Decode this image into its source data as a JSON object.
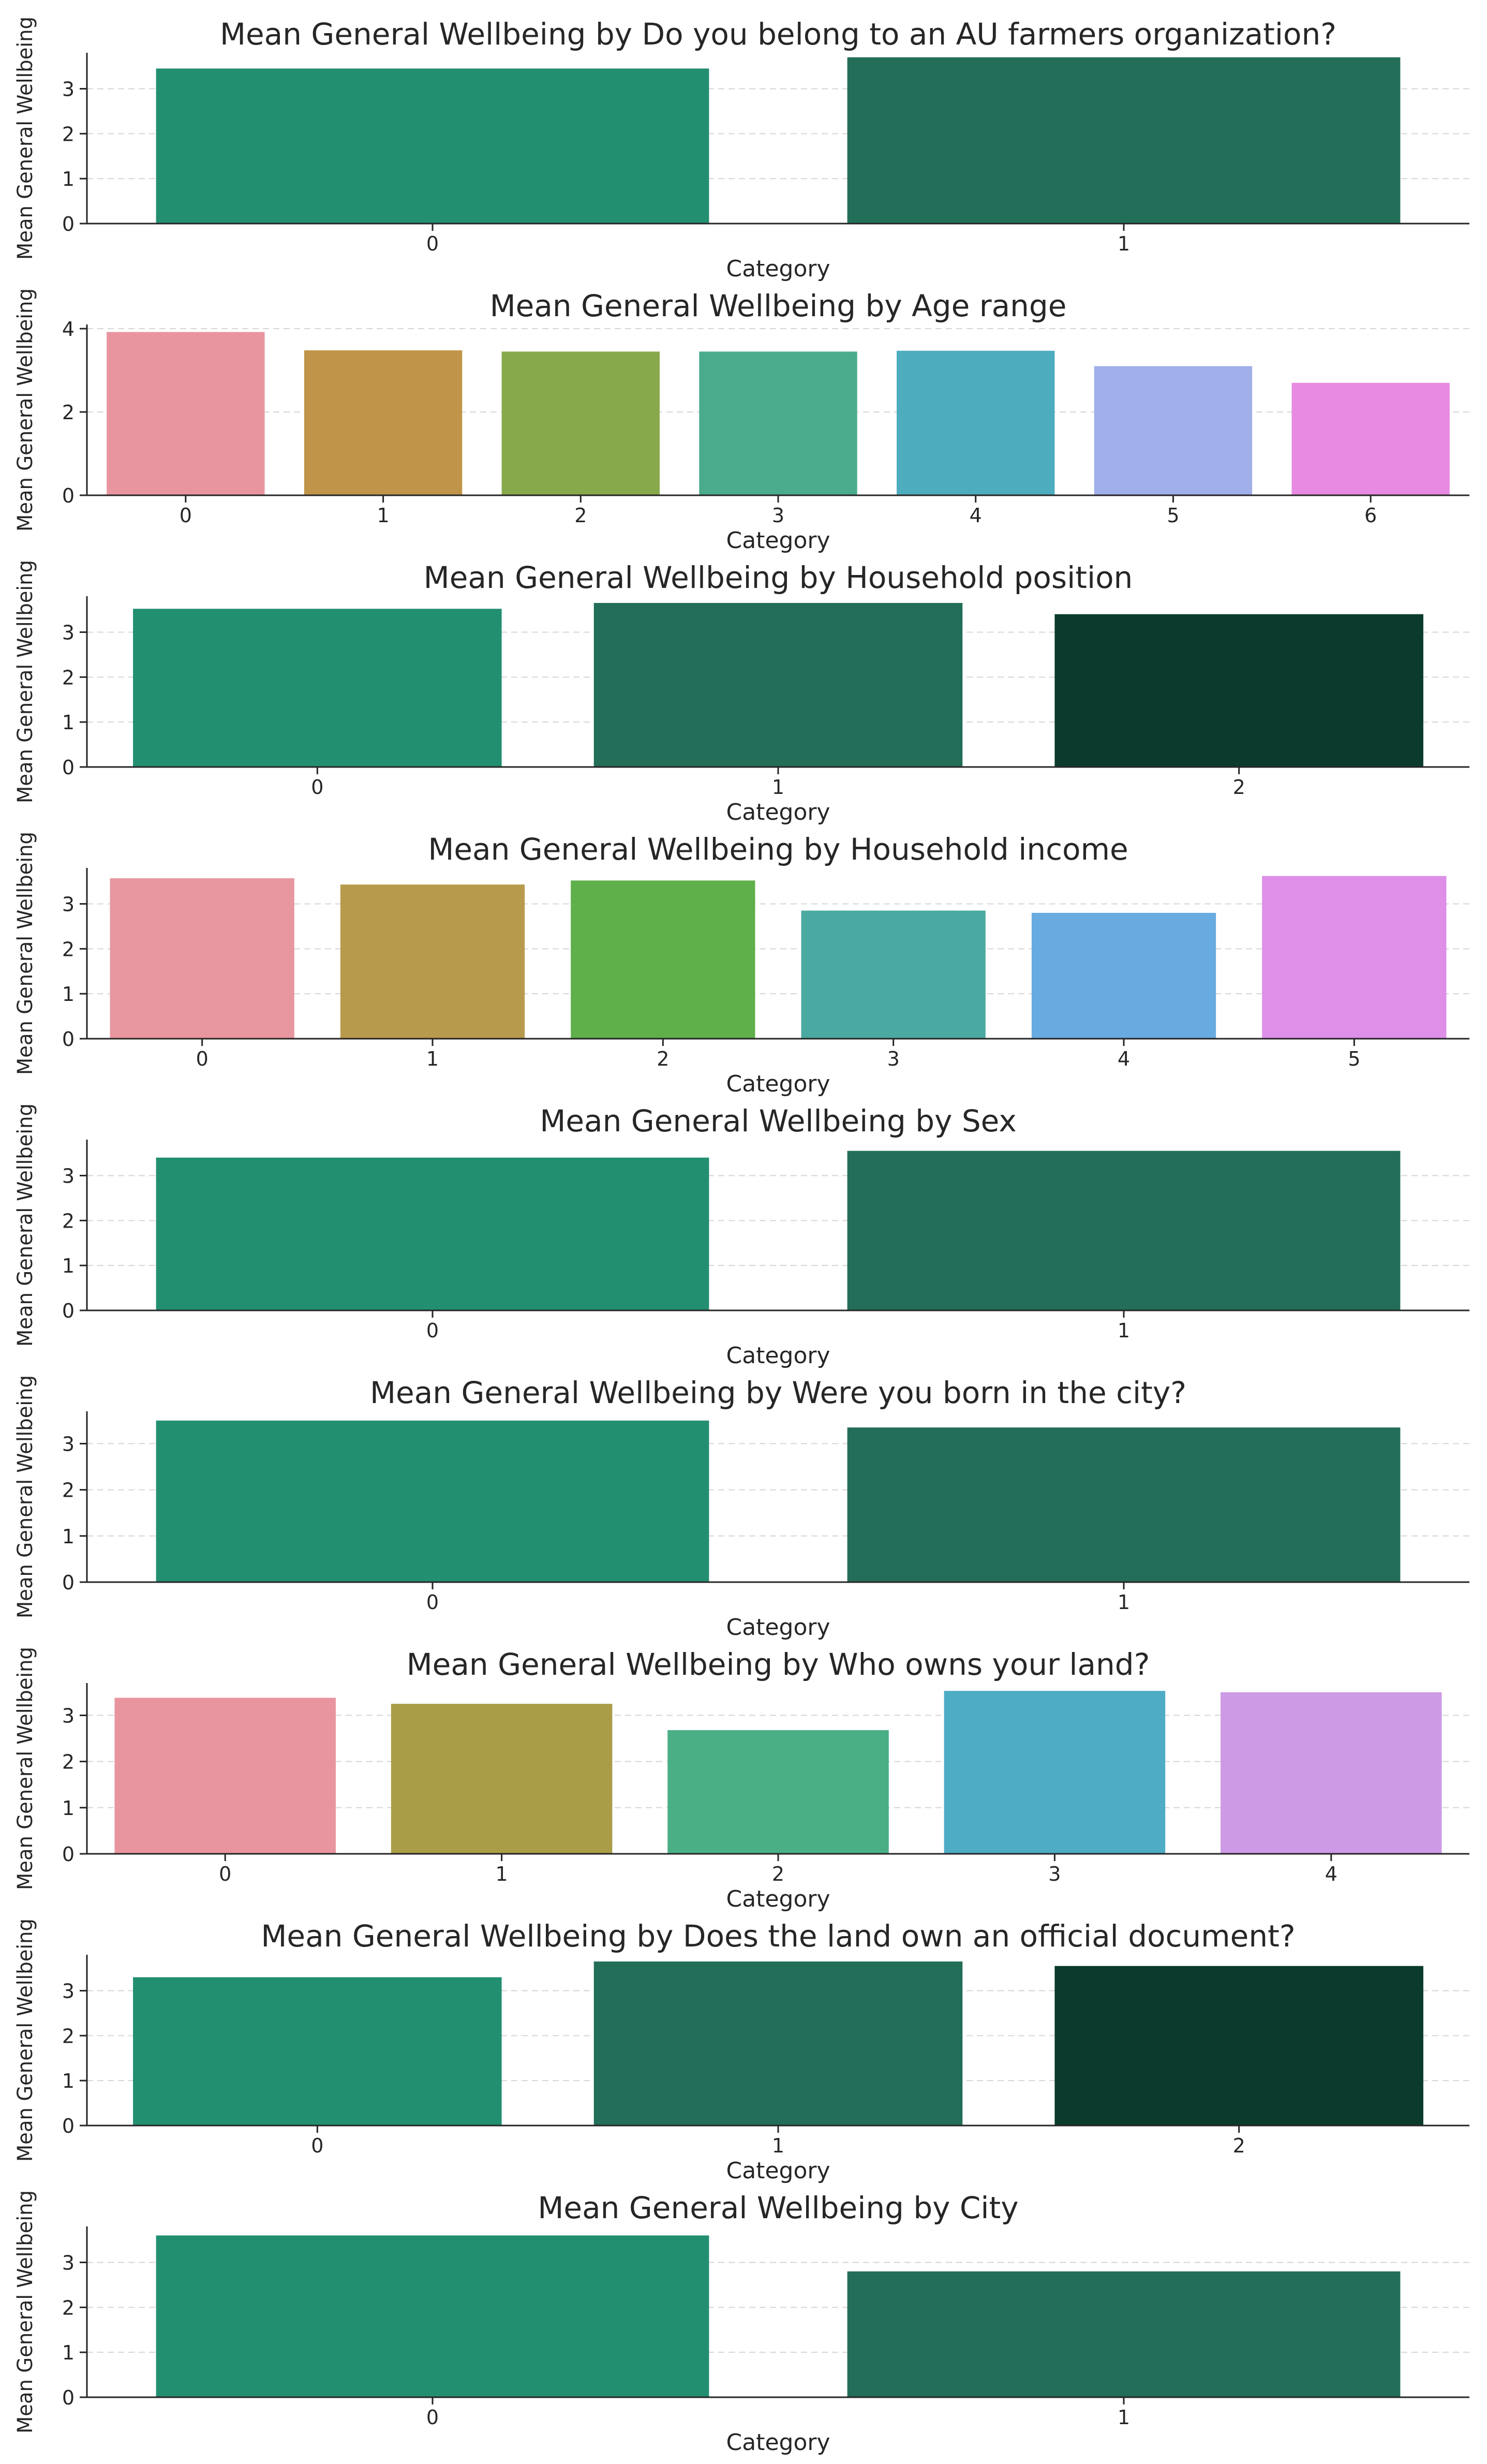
{
  "chart_data": [
    {
      "type": "bar",
      "title": "Mean General Wellbeing by Do you belong to an AU farmers organization?",
      "xlabel": "Category",
      "ylabel": "Mean General Wellbeing",
      "categories": [
        "0",
        "1"
      ],
      "values": [
        3.45,
        3.7
      ],
      "yticks": [
        "0",
        "1",
        "2",
        "3"
      ],
      "ylim": [
        0,
        3.8
      ],
      "grid": true,
      "colors": [
        "#238f71",
        "#226e58"
      ]
    },
    {
      "type": "bar",
      "title": "Mean General Wellbeing by Age range",
      "xlabel": "Category",
      "ylabel": "Mean General Wellbeing",
      "categories": [
        "0",
        "1",
        "2",
        "3",
        "4",
        "5",
        "6"
      ],
      "values": [
        3.92,
        3.48,
        3.45,
        3.45,
        3.47,
        3.1,
        2.7
      ],
      "yticks": [
        "0",
        "2",
        "4"
      ],
      "ylim": [
        0,
        4.1
      ],
      "grid": true,
      "colors": [
        "#e8959f",
        "#c0954a",
        "#88a94b",
        "#4aac8d",
        "#4eacbf",
        "#a0aeea",
        "#e88ae2"
      ]
    },
    {
      "type": "bar",
      "title": "Mean General Wellbeing by Household position",
      "xlabel": "Category",
      "ylabel": "Mean General Wellbeing",
      "categories": [
        "0",
        "1",
        "2"
      ],
      "values": [
        3.52,
        3.65,
        3.4
      ],
      "yticks": [
        "0",
        "1",
        "2",
        "3"
      ],
      "ylim": [
        0,
        3.8
      ],
      "grid": true,
      "colors": [
        "#238f71",
        "#226e58",
        "#0a3b2c"
      ]
    },
    {
      "type": "bar",
      "title": "Mean General Wellbeing by Household income",
      "xlabel": "Category",
      "ylabel": "Mean General Wellbeing",
      "categories": [
        "0",
        "1",
        "2",
        "3",
        "4",
        "5"
      ],
      "values": [
        3.57,
        3.43,
        3.52,
        2.85,
        2.8,
        3.62
      ],
      "yticks": [
        "0",
        "1",
        "2",
        "3"
      ],
      "ylim": [
        0,
        3.8
      ],
      "grid": true,
      "colors": [
        "#e8969f",
        "#b89a4c",
        "#5faf4a",
        "#4aa9a1",
        "#68abe0",
        "#de8fe8"
      ]
    },
    {
      "type": "bar",
      "title": "Mean General Wellbeing by Sex",
      "xlabel": "Category",
      "ylabel": "Mean General Wellbeing",
      "categories": [
        "0",
        "1"
      ],
      "values": [
        3.4,
        3.55
      ],
      "yticks": [
        "0",
        "1",
        "2",
        "3"
      ],
      "ylim": [
        0,
        3.8
      ],
      "grid": true,
      "colors": [
        "#238f71",
        "#226e58"
      ]
    },
    {
      "type": "bar",
      "title": "Mean General Wellbeing by Were you born in the city?",
      "xlabel": "Category",
      "ylabel": "Mean General Wellbeing",
      "categories": [
        "0",
        "1"
      ],
      "values": [
        3.5,
        3.35
      ],
      "yticks": [
        "0",
        "1",
        "2",
        "3"
      ],
      "ylim": [
        0,
        3.7
      ],
      "grid": true,
      "colors": [
        "#238f71",
        "#226e58"
      ]
    },
    {
      "type": "bar",
      "title": "Mean General Wellbeing by Who owns your land?",
      "xlabel": "Category",
      "ylabel": "Mean General Wellbeing",
      "categories": [
        "0",
        "1",
        "2",
        "3",
        "4"
      ],
      "values": [
        3.38,
        3.25,
        2.68,
        3.53,
        3.5
      ],
      "yticks": [
        "0",
        "1",
        "2",
        "3"
      ],
      "ylim": [
        0,
        3.7
      ],
      "grid": true,
      "colors": [
        "#e8959f",
        "#a99d48",
        "#4aaf85",
        "#4eacc4",
        "#cd9ae6"
      ]
    },
    {
      "type": "bar",
      "title": "Mean General Wellbeing by Does the land own an official document?",
      "xlabel": "Category",
      "ylabel": "Mean General Wellbeing",
      "categories": [
        "0",
        "1",
        "2"
      ],
      "values": [
        3.3,
        3.65,
        3.55
      ],
      "yticks": [
        "0",
        "1",
        "2",
        "3"
      ],
      "ylim": [
        0,
        3.8
      ],
      "grid": true,
      "colors": [
        "#238f71",
        "#226e58",
        "#0a3b2c"
      ]
    },
    {
      "type": "bar",
      "title": "Mean General Wellbeing by City",
      "xlabel": "Category",
      "ylabel": "Mean General Wellbeing",
      "categories": [
        "0",
        "1"
      ],
      "values": [
        3.6,
        2.8
      ],
      "yticks": [
        "0",
        "1",
        "2",
        "3"
      ],
      "ylim": [
        0,
        3.8
      ],
      "grid": true,
      "colors": [
        "#238f71",
        "#226e58"
      ]
    }
  ]
}
